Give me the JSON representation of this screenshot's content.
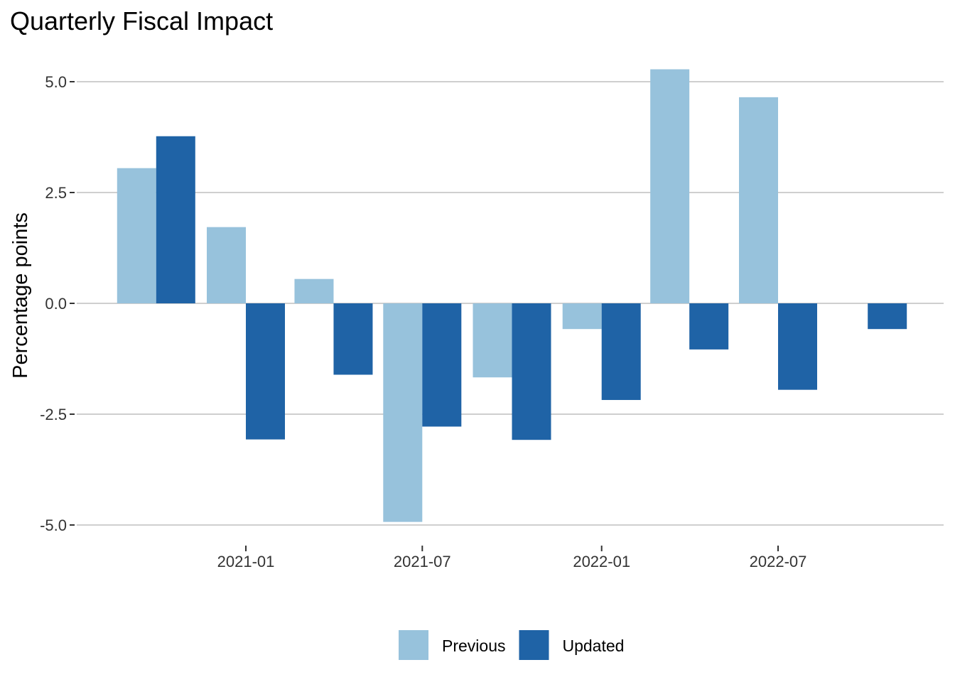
{
  "chart_data": {
    "type": "bar",
    "title": "Quarterly Fiscal Impact",
    "xlabel": "",
    "ylabel": "Percentage points",
    "ylim": [
      -5.0,
      5.0
    ],
    "yticks": [
      -5.0,
      -2.5,
      0.0,
      2.5,
      5.0
    ],
    "ytick_labels": [
      "-5.0",
      "-2.5",
      "0.0",
      "2.5",
      "5.0"
    ],
    "xticks": [
      "2021-01-01",
      "2021-07-01",
      "2022-01-01",
      "2022-07-01"
    ],
    "xtick_labels": [
      "2021-01",
      "2021-07",
      "2022-01",
      "2022-07"
    ],
    "x": [
      "2020-10-01",
      "2021-01-01",
      "2021-04-01",
      "2021-07-01",
      "2021-10-01",
      "2022-01-01",
      "2022-04-01",
      "2022-07-01",
      "2022-10-01"
    ],
    "series": [
      {
        "name": "Previous",
        "color": "#97c2dc",
        "values": [
          3.05,
          1.72,
          0.55,
          -4.93,
          -1.67,
          -0.58,
          5.28,
          4.65,
          null
        ]
      },
      {
        "name": "Updated",
        "color": "#1f63a6",
        "values": [
          3.77,
          -3.07,
          -1.61,
          -2.78,
          -3.08,
          -2.18,
          -1.04,
          -1.95,
          -0.58
        ]
      }
    ],
    "grid": "horizontal",
    "legend_position": "bottom"
  }
}
